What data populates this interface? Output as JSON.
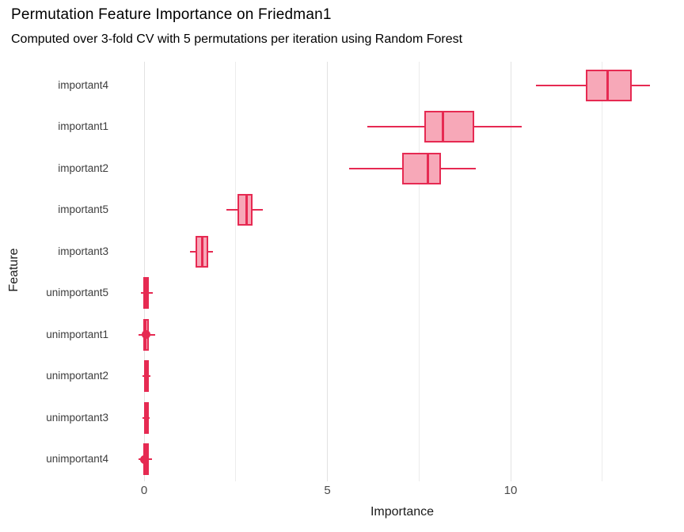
{
  "chart_data": {
    "type": "boxplot",
    "orientation": "horizontal",
    "title": "Permutation Feature Importance on Friedman1",
    "subtitle": "Computed over 3-fold CV with 5 permutations per iteration using Random Forest",
    "xlabel": "Importance",
    "ylabel": "Feature",
    "x_ticks": [
      0,
      5,
      10
    ],
    "x_minor_ticks": [
      2.5,
      7.5,
      12.5
    ],
    "xlim": [
      -0.37,
      14.73
    ],
    "grid": "vertical-only",
    "legend": "none",
    "colors": {
      "box_stroke": "#e62a52",
      "box_fill": "#f7a8b8",
      "grid_major": "#e2e2e2",
      "grid_minor": "#ececec",
      "background": "#ffffff"
    },
    "features": [
      {
        "name": "important4",
        "whisker_lo": 10.7,
        "q1": 12.05,
        "median": 12.65,
        "q3": 13.3,
        "whisker_hi": 13.8,
        "outliers": []
      },
      {
        "name": "important1",
        "whisker_lo": 6.1,
        "q1": 7.65,
        "median": 8.15,
        "q3": 9.0,
        "whisker_hi": 10.3,
        "outliers": []
      },
      {
        "name": "important2",
        "whisker_lo": 5.6,
        "q1": 7.05,
        "median": 7.75,
        "q3": 8.1,
        "whisker_hi": 9.05,
        "outliers": []
      },
      {
        "name": "important5",
        "whisker_lo": 2.25,
        "q1": 2.55,
        "median": 2.8,
        "q3": 2.95,
        "whisker_hi": 3.25,
        "outliers": []
      },
      {
        "name": "important3",
        "whisker_lo": 1.25,
        "q1": 1.4,
        "median": 1.58,
        "q3": 1.75,
        "whisker_hi": 1.88,
        "outliers": []
      },
      {
        "name": "unimportant5",
        "whisker_lo": -0.09,
        "q1": -0.02,
        "median": 0.05,
        "q3": 0.13,
        "whisker_hi": 0.24,
        "outliers": []
      },
      {
        "name": "unimportant1",
        "whisker_lo": -0.15,
        "q1": -0.03,
        "median": 0.04,
        "q3": 0.13,
        "whisker_hi": 0.3,
        "outliers": [
          0.05
        ]
      },
      {
        "name": "unimportant2",
        "whisker_lo": -0.05,
        "q1": -0.01,
        "median": 0.05,
        "q3": 0.12,
        "whisker_hi": 0.17,
        "outliers": []
      },
      {
        "name": "unimportant3",
        "whisker_lo": -0.04,
        "q1": -0.01,
        "median": 0.05,
        "q3": 0.12,
        "whisker_hi": 0.15,
        "outliers": []
      },
      {
        "name": "unimportant4",
        "whisker_lo": -0.15,
        "q1": -0.02,
        "median": 0.05,
        "q3": 0.13,
        "whisker_hi": 0.21,
        "outliers": [
          0.0
        ]
      }
    ]
  }
}
